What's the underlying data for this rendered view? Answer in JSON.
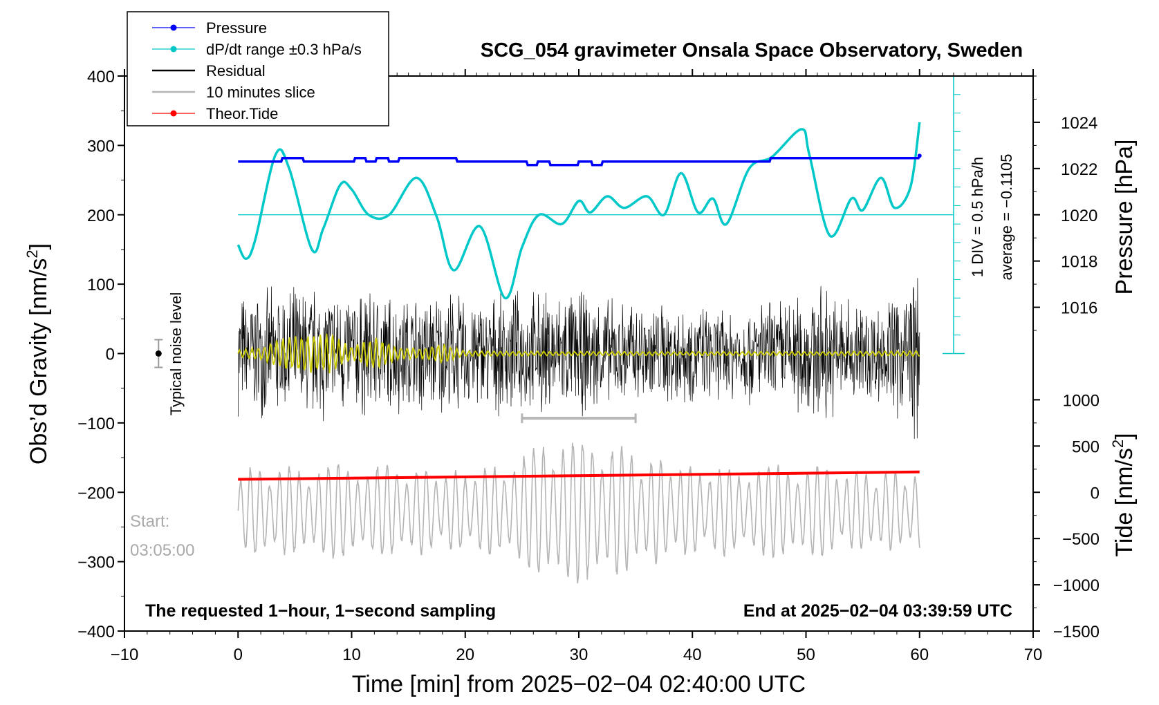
{
  "chart_data": {
    "type": "line",
    "title": "SCG_054 gravimeter Onsala Space Observatory, Sweden",
    "xlabel": "Time [min] from 2025−02−04 02:40:00 UTC",
    "ylabel_left": "Obs’d Gravity [nm/s",
    "ylabel_left_sup": "2",
    "ylabel_left_close": "]",
    "ylabel_right_top": "Pressure [hPa]",
    "ylabel_right_bottom": "Tide [nm/s",
    "ylabel_right_bottom_sup": "2",
    "ylabel_right_bottom_close": "]",
    "xlim": [
      -10,
      70
    ],
    "ylim_left": [
      -400,
      400
    ],
    "pressure_lim": [
      1014,
      1026
    ],
    "tide_lim": [
      -1500,
      1500
    ],
    "x_ticks": [
      "−10",
      "0",
      "10",
      "20",
      "30",
      "40",
      "50",
      "60",
      "70"
    ],
    "y_ticks_left": [
      "400",
      "300",
      "200",
      "100",
      "0",
      "−100",
      "−200",
      "−300",
      "−400"
    ],
    "y_ticks_pressure": [
      "1024",
      "1022",
      "1020",
      "1018",
      "1016"
    ],
    "y_ticks_tide": [
      "1000",
      "500",
      "0",
      "−500",
      "−1000",
      "−1500"
    ],
    "legend": [
      {
        "label": "Pressure",
        "color": "#0000ff",
        "marker": "dot"
      },
      {
        "label": "dP/dt range ±0.3 hPa/s",
        "color": "#00c8c8",
        "marker": "dot"
      },
      {
        "label": "Residual",
        "color": "#000000",
        "marker": "line"
      },
      {
        "label": "10 minutes slice",
        "color": "#b4b4b4",
        "marker": "line"
      },
      {
        "label": "Theor.Tide",
        "color": "#ff0000",
        "marker": "dot"
      }
    ],
    "series": [
      {
        "name": "Pressure",
        "axis": "pressure",
        "x": [
          0,
          3.8,
          3.9,
          5.7,
          5.8,
          10.2,
          10.3,
          11.2,
          11.3,
          12.1,
          12.2,
          13.2,
          13.3,
          14.1,
          14.2,
          19.2,
          19.3,
          25.4,
          25.5,
          26.3,
          26.4,
          27.4,
          27.5,
          29.9,
          30.0,
          31.1,
          31.2,
          32.0,
          32.1,
          46.8,
          46.9,
          59.9,
          60.0
        ],
        "values": [
          1022.3,
          1022.3,
          1022.45,
          1022.45,
          1022.3,
          1022.3,
          1022.45,
          1022.45,
          1022.3,
          1022.3,
          1022.45,
          1022.45,
          1022.3,
          1022.3,
          1022.45,
          1022.45,
          1022.3,
          1022.3,
          1022.15,
          1022.15,
          1022.3,
          1022.3,
          1022.15,
          1022.15,
          1022.3,
          1022.3,
          1022.15,
          1022.15,
          1022.3,
          1022.3,
          1022.45,
          1022.45,
          1022.55
        ]
      },
      {
        "name": "dP/dt range ±0.3 hPa/s",
        "axis": "pressure",
        "x": [
          0,
          0.7,
          1.5,
          3.3,
          4.5,
          6.5,
          7.5,
          9.0,
          10.0,
          11.5,
          13.3,
          15.7,
          17.5,
          19.0,
          21.3,
          23.5,
          25.0,
          26.5,
          28.5,
          30.0,
          31.0,
          32.5,
          34.0,
          36.0,
          37.5,
          39.0,
          40.5,
          41.8,
          43.0,
          45.0,
          47.0,
          49.6,
          50.3,
          52.1,
          54.0,
          55.0,
          56.6,
          57.8,
          59.2,
          60.0
        ],
        "values": [
          1018.7,
          1018.1,
          1018.9,
          1022.6,
          1022.0,
          1018.5,
          1019.4,
          1021.3,
          1021.1,
          1020.0,
          1020.0,
          1021.6,
          1019.9,
          1017.6,
          1019.5,
          1016.4,
          1018.6,
          1020.0,
          1019.6,
          1020.6,
          1020.1,
          1020.8,
          1020.3,
          1020.8,
          1020.0,
          1021.8,
          1020.1,
          1020.7,
          1019.6,
          1022.0,
          1022.5,
          1023.7,
          1022.6,
          1019.1,
          1020.7,
          1020.2,
          1021.6,
          1020.3,
          1021.2,
          1024.0
        ]
      },
      {
        "name": "Residual",
        "axis": "gravity",
        "approx_envelope_x": [
          0,
          3,
          6,
          9,
          12,
          15,
          18,
          21,
          24,
          27,
          30,
          33,
          36,
          39,
          42,
          45,
          48,
          51,
          54,
          57,
          60
        ],
        "approx_envelope_amplitude": [
          95,
          100,
          110,
          105,
          100,
          95,
          100,
          90,
          95,
          100,
          100,
          85,
          85,
          85,
          70,
          80,
          90,
          110,
          90,
          80,
          160
        ]
      },
      {
        "name": "Noise-filtered residual",
        "axis": "gravity",
        "color": "#cccc00",
        "approx_envelope_x": [
          0,
          2,
          4,
          6,
          8,
          10,
          12,
          14,
          16,
          18,
          20,
          30,
          40,
          50,
          60
        ],
        "approx_envelope_amplitude": [
          5,
          10,
          25,
          30,
          30,
          10,
          25,
          10,
          8,
          15,
          4,
          3,
          3,
          3,
          4
        ]
      },
      {
        "name": "10 minutes slice",
        "axis": "tide",
        "color": "#b4b4b4",
        "approx_envelope_x": [
          0,
          5,
          10,
          15,
          20,
          25,
          27,
          30,
          33,
          35,
          40,
          45,
          50,
          55,
          60
        ],
        "approx_envelope_amplitude": [
          500,
          500,
          550,
          500,
          450,
          600,
          900,
          800,
          800,
          650,
          500,
          500,
          550,
          450,
          450
        ],
        "center": -200
      },
      {
        "name": "Theor.Tide",
        "axis": "tide",
        "x": [
          0,
          60
        ],
        "values": [
          140,
          220
        ]
      }
    ],
    "annotations": {
      "noise_label": "Typical noise level",
      "noise_bar_value": 0,
      "noise_bar_halfwidth": 20,
      "start_label": "Start:",
      "start_time": "03:05:00",
      "slice_range_min": [
        25,
        35
      ],
      "bottom_left_note": "The requested 1−hour, 1−second sampling",
      "bottom_right_note": "End at 2025−02−04 03:39:59 UTC",
      "scale_label_1": "1 DIV = 0.5 hPa/h",
      "scale_label_2": "average = −0.1105",
      "scale_divisions": 15
    }
  }
}
